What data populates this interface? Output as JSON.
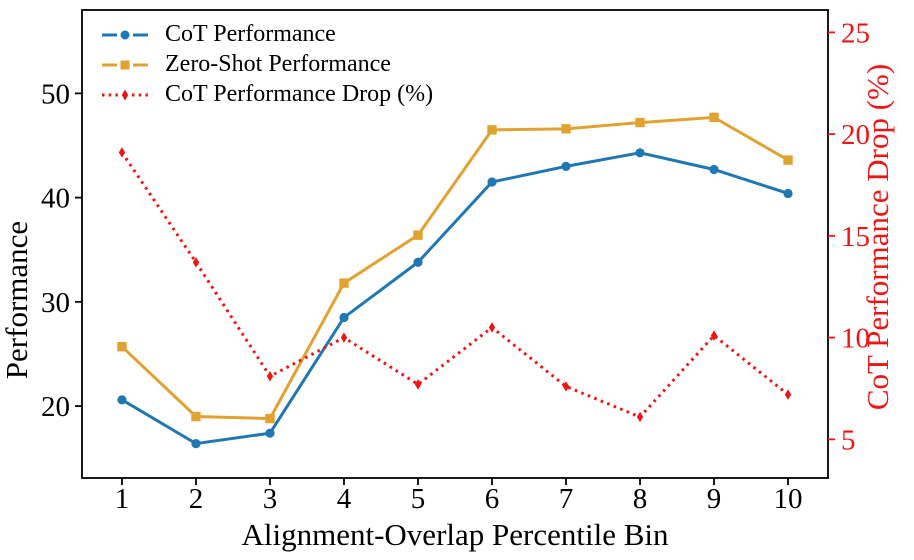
{
  "chart_data": {
    "type": "line",
    "title": "",
    "xlabel": "Alignment-Overlap Percentile Bin",
    "ylabel_left": "Performance",
    "ylabel_right": "CoT Performance Drop (%)",
    "x": [
      1,
      2,
      3,
      4,
      5,
      6,
      7,
      8,
      9,
      10
    ],
    "x_tick_labels": [
      "1",
      "2",
      "3",
      "4",
      "5",
      "6",
      "7",
      "8",
      "9",
      "10"
    ],
    "y_ticks_left": [
      50,
      40,
      30,
      20
    ],
    "y_ticks_right": [
      25,
      20,
      15,
      10,
      5
    ],
    "ylim_left": [
      13.1,
      58.0
    ],
    "ylim_right": [
      3.1,
      26.1
    ],
    "xlim": [
      0.46,
      10.54
    ],
    "grid": false,
    "legend_position": "upper-left",
    "legend_frame": false,
    "axis_color_left": "#000000",
    "axis_color_right": "#f01414",
    "series": [
      {
        "name": "CoT Performance",
        "axis": "left",
        "color": "#1f77b4",
        "marker": "circle",
        "line": "solid",
        "values": [
          20.6,
          16.4,
          17.4,
          28.5,
          33.8,
          41.5,
          43.0,
          44.3,
          42.7,
          40.4
        ]
      },
      {
        "name": "Zero-Shot Performance",
        "axis": "left",
        "color": "#e2a232",
        "marker": "square",
        "line": "solid",
        "values": [
          25.7,
          19.0,
          18.8,
          31.8,
          36.4,
          46.5,
          46.6,
          47.2,
          47.7,
          43.6
        ]
      },
      {
        "name": "CoT Performance Drop (%)",
        "axis": "right",
        "color": "#f01414",
        "marker": "thin-diamond",
        "line": "dotted",
        "values": [
          19.1,
          13.7,
          8.1,
          10.0,
          7.7,
          10.5,
          7.6,
          6.1,
          10.1,
          7.2
        ]
      }
    ]
  }
}
